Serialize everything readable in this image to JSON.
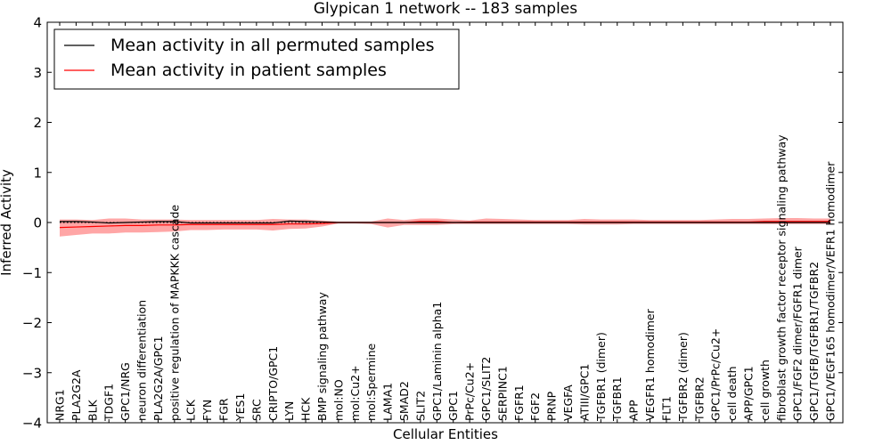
{
  "chart_data": {
    "type": "line",
    "title": "Glypican 1 network -- 183 samples",
    "xlabel": "Cellular Entities",
    "ylabel": "Inferred Activity",
    "ylim": [
      -4,
      4
    ],
    "yticks": [
      -4,
      -3,
      -2,
      -1,
      0,
      1,
      2,
      3,
      4
    ],
    "ytick_labels": [
      "−4",
      "−3",
      "−2",
      "−1",
      "0",
      "1",
      "2",
      "3",
      "4"
    ],
    "grid": false,
    "legend_placement": "top-left",
    "categories": [
      "NRG1",
      "PLA2G2A",
      "BLK",
      "TDGF1",
      "GPC1/NRG",
      "neuron differentiation",
      "PLA2G2A/GPC1",
      "positive regulation of MAPKKK cascade",
      "LCK",
      "FYN",
      "FGR",
      "YES1",
      "SRC",
      "CRIPTO/GPC1",
      "LYN",
      "HCK",
      "BMP signaling pathway",
      "mol:NO",
      "mol:Cu2+",
      "mol:Spermine",
      "LAMA1",
      "SMAD2",
      "SLIT2",
      "GPC1/Laminin alpha1",
      "GPC1",
      "PrPc/Cu2+",
      "GPC1/SLIT2",
      "SERPINC1",
      "FGFR1",
      "FGF2",
      "PRNP",
      "VEGFA",
      "ATIII/GPC1",
      "TGFBR1 (dimer)",
      "TGFBR1",
      "APP",
      "VEGFR1 homodimer",
      "FLT1",
      "TGFBR2 (dimer)",
      "TGFBR2",
      "GPC1/PrPc/Cu2+",
      "cell death",
      "APP/GPC1",
      "cell growth",
      "fibroblast growth factor receptor signaling pathway",
      "GPC1/FGF2 dimer/FGFR1 dimer",
      "GPC1/TGFB/TGFBR1/TGFBR2",
      "GPC1/VEGF165 homodimer/VEFR1 homodimer"
    ],
    "series": [
      {
        "name": "Mean activity in all permuted samples",
        "color": "#000000",
        "values": [
          0.02,
          0.02,
          0.01,
          -0.01,
          0.0,
          0.01,
          0.02,
          0.02,
          -0.01,
          -0.01,
          -0.01,
          -0.01,
          -0.01,
          -0.01,
          0.03,
          0.02,
          0.01,
          0.0,
          0.0,
          0.0,
          0.0,
          0.0,
          0.0,
          0.0,
          0.0,
          0.0,
          0.0,
          0.0,
          0.0,
          0.0,
          0.0,
          0.0,
          0.0,
          0.0,
          0.0,
          0.0,
          0.0,
          0.0,
          0.0,
          0.0,
          0.0,
          0.0,
          0.0,
          0.0,
          0.0,
          0.0,
          0.0,
          0.0
        ],
        "band_low": [
          -0.02,
          -0.02,
          -0.02,
          -0.02,
          -0.02,
          -0.02,
          -0.02,
          -0.02,
          -0.02,
          -0.02,
          -0.02,
          -0.02,
          -0.02,
          -0.02,
          -0.02,
          -0.02,
          -0.02,
          -0.02,
          -0.02,
          -0.02,
          -0.02,
          -0.02,
          -0.02,
          -0.02,
          -0.02,
          -0.02,
          -0.02,
          -0.02,
          -0.02,
          -0.02,
          -0.02,
          -0.02,
          -0.02,
          -0.02,
          -0.02,
          -0.02,
          -0.02,
          -0.02,
          -0.02,
          -0.02,
          -0.02,
          -0.02,
          -0.02,
          -0.02,
          -0.02,
          -0.02,
          -0.02,
          -0.02
        ],
        "band_high": [
          0.02,
          0.02,
          0.02,
          0.02,
          0.02,
          0.02,
          0.02,
          0.02,
          0.02,
          0.02,
          0.02,
          0.02,
          0.02,
          0.02,
          0.02,
          0.02,
          0.02,
          0.02,
          0.02,
          0.02,
          0.02,
          0.02,
          0.02,
          0.02,
          0.02,
          0.02,
          0.02,
          0.02,
          0.02,
          0.02,
          0.02,
          0.02,
          0.02,
          0.02,
          0.02,
          0.02,
          0.02,
          0.02,
          0.02,
          0.02,
          0.02,
          0.02,
          0.02,
          0.02,
          0.02,
          0.02,
          0.02,
          0.02
        ]
      },
      {
        "name": "Mean activity in patient samples",
        "color": "#ff0000",
        "values": [
          -0.1,
          -0.09,
          -0.08,
          -0.07,
          -0.06,
          -0.06,
          -0.05,
          -0.05,
          -0.04,
          -0.04,
          -0.04,
          -0.04,
          -0.04,
          -0.04,
          -0.03,
          -0.03,
          -0.02,
          0.0,
          0.0,
          0.0,
          0.0,
          0.0,
          0.02,
          0.02,
          0.0,
          0.01,
          0.01,
          0.01,
          0.01,
          0.01,
          0.01,
          0.01,
          0.01,
          0.01,
          0.01,
          0.01,
          0.01,
          0.01,
          0.01,
          0.01,
          0.01,
          0.01,
          0.01,
          0.02,
          0.02,
          0.02,
          0.02,
          0.02
        ],
        "band_low": [
          -0.28,
          -0.25,
          -0.22,
          -0.22,
          -0.2,
          -0.2,
          -0.19,
          -0.18,
          -0.15,
          -0.15,
          -0.14,
          -0.14,
          -0.14,
          -0.16,
          -0.13,
          -0.12,
          -0.08,
          -0.02,
          -0.02,
          -0.03,
          -0.1,
          -0.05,
          -0.05,
          -0.05,
          -0.03,
          -0.03,
          -0.03,
          -0.03,
          -0.03,
          -0.03,
          -0.03,
          -0.03,
          -0.04,
          -0.04,
          -0.04,
          -0.03,
          -0.03,
          -0.03,
          -0.03,
          -0.03,
          -0.03,
          -0.03,
          -0.03,
          -0.03,
          -0.03,
          -0.03,
          -0.03,
          -0.03
        ],
        "band_high": [
          0.06,
          0.06,
          0.05,
          0.08,
          0.08,
          0.06,
          0.06,
          0.06,
          0.05,
          0.05,
          0.05,
          0.05,
          0.05,
          0.07,
          0.06,
          0.06,
          0.04,
          0.02,
          0.02,
          0.02,
          0.08,
          0.05,
          0.08,
          0.08,
          0.06,
          0.04,
          0.08,
          0.07,
          0.06,
          0.05,
          0.05,
          0.05,
          0.07,
          0.06,
          0.06,
          0.06,
          0.05,
          0.05,
          0.05,
          0.05,
          0.06,
          0.07,
          0.07,
          0.08,
          0.09,
          0.09,
          0.08,
          0.08
        ]
      }
    ]
  }
}
